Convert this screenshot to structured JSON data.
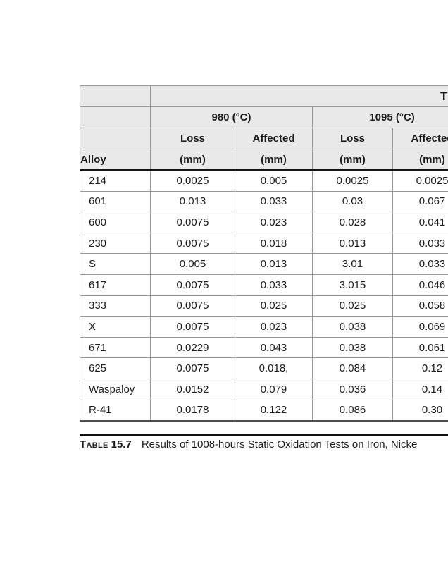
{
  "table": {
    "corner_fragment": "T",
    "temp_groups": [
      {
        "label": "980 (°C)"
      },
      {
        "label": "1095 (°C)"
      }
    ],
    "measure_headers": {
      "loss": "Loss",
      "affected": "Affected"
    },
    "alloy_header": "Alloy",
    "unit_label": "(mm)",
    "rows": [
      {
        "alloy": "214",
        "values": [
          "0.0025",
          "0.005",
          "0.0025",
          "0.0025"
        ]
      },
      {
        "alloy": "601",
        "values": [
          "0.013",
          "0.033",
          "0.03",
          "0.067"
        ]
      },
      {
        "alloy": "600",
        "values": [
          "0.0075",
          "0.023",
          "0.028",
          "0.041"
        ]
      },
      {
        "alloy": "230",
        "values": [
          "0.0075",
          "0.018",
          "0.013",
          "0.033"
        ]
      },
      {
        "alloy": "S",
        "values": [
          "0.005",
          "0.013",
          "3.01",
          "0.033"
        ]
      },
      {
        "alloy": "617",
        "values": [
          "0.0075",
          "0.033",
          "3.015",
          "0.046"
        ]
      },
      {
        "alloy": "333",
        "values": [
          "0.0075",
          "0.025",
          "0.025",
          "0.058"
        ]
      },
      {
        "alloy": "X",
        "values": [
          "0.0075",
          "0.023",
          "0.038",
          "0.069"
        ]
      },
      {
        "alloy": "671",
        "values": [
          "0.0229",
          "0.043",
          "0.038",
          "0.061"
        ]
      },
      {
        "alloy": "625",
        "values": [
          "0.0075",
          "0.018,",
          "0.084",
          "0.12"
        ]
      },
      {
        "alloy": "Waspaloy",
        "values": [
          "0.0152",
          "0.079",
          "0.036",
          "0.14"
        ]
      },
      {
        "alloy": "R-41",
        "values": [
          "0.0178",
          "0.122",
          "0.086",
          "0.30"
        ]
      }
    ]
  },
  "caption": {
    "label": "Table",
    "number": "15.7",
    "text": "Results of 1008-hours Static Oxidation Tests on Iron, Nicke"
  },
  "colors": {
    "header_bg": "#e9e9e9",
    "grid_line": "#979797",
    "heavy_rule": "#141414",
    "text": "#1c1c1c",
    "page_bg": "#ffffff"
  }
}
